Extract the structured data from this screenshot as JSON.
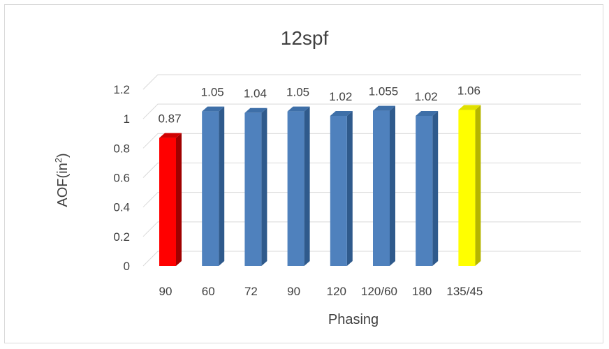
{
  "chart_data": {
    "type": "bar",
    "title": "12spf",
    "xlabel": "Phasing",
    "ylabel_main": "AOF(in",
    "ylabel_sup": "2",
    "ylabel_close": ")",
    "categories": [
      "90",
      "60",
      "72",
      "90",
      "120",
      "120/60",
      "180",
      "135/45"
    ],
    "values": [
      0.87,
      1.05,
      1.04,
      1.05,
      1.02,
      1.055,
      1.02,
      1.06
    ],
    "data_labels": [
      "0.87",
      "1.05",
      "1.04",
      "1.05",
      "1.02",
      "1.055",
      "1.02",
      "1.06"
    ],
    "y_ticks": [
      0,
      0.2,
      0.4,
      0.6,
      0.8,
      1,
      1.2
    ],
    "y_tick_labels": [
      "0",
      "0.2",
      "0.4",
      "0.6",
      "0.8",
      "1",
      "1.2"
    ],
    "ylim": [
      0,
      1.2
    ],
    "grid": true,
    "legend": "none",
    "bar_colors": [
      "#ff0000",
      "#4f81bd",
      "#4f81bd",
      "#4f81bd",
      "#4f81bd",
      "#4f81bd",
      "#4f81bd",
      "#ffff00"
    ],
    "bar_side_colors": [
      "#a00000",
      "#2f5a8c",
      "#2f5a8c",
      "#2f5a8c",
      "#2f5a8c",
      "#2f5a8c",
      "#2f5a8c",
      "#b5b500"
    ],
    "bar_top_colors": [
      "#d00000",
      "#3e6fa8",
      "#3e6fa8",
      "#3e6fa8",
      "#3e6fa8",
      "#3e6fa8",
      "#3e6fa8",
      "#e0e000"
    ]
  }
}
